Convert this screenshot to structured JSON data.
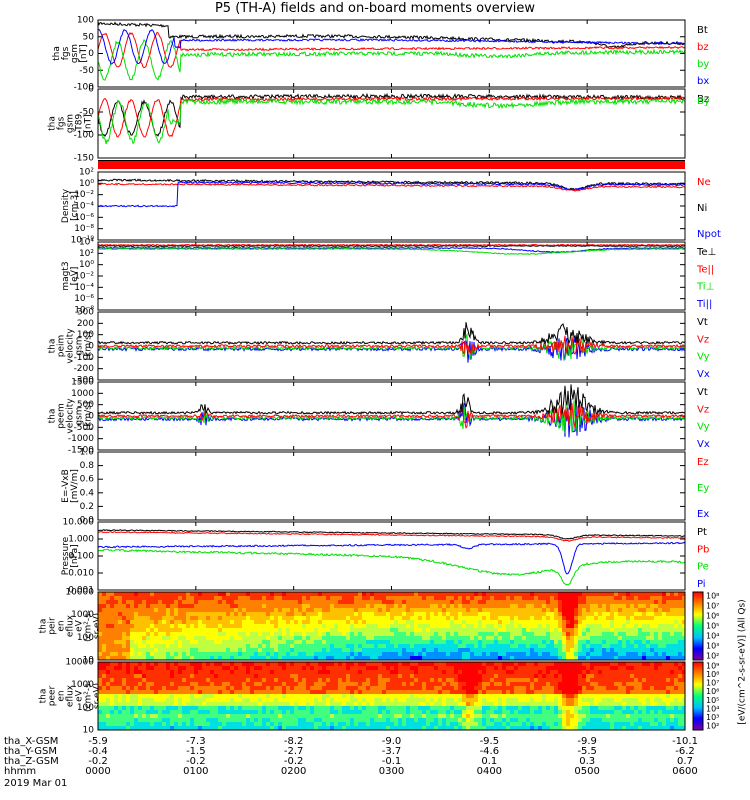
{
  "title": "P5 (TH-A) fields and on-board moments overview",
  "date_label": "2019 Mar 01",
  "footer_rows": [
    {
      "label": "tha_X-GSM",
      "values": [
        "-5.9",
        "-7.3",
        "-8.2",
        "-9.0",
        "-9.5",
        "-9.9",
        "-10.1"
      ]
    },
    {
      "label": "tha_Y-GSM",
      "values": [
        "-0.4",
        "-1.5",
        "-2.7",
        "-3.7",
        "-4.6",
        "-5.5",
        "-6.2"
      ]
    },
    {
      "label": "tha_Z-GSM",
      "values": [
        "-0.2",
        "-0.2",
        "-0.2",
        "-0.1",
        "0.1",
        "0.3",
        "0.7"
      ]
    },
    {
      "label": "hhmm",
      "values": [
        "0000",
        "0100",
        "0200",
        "0300",
        "0400",
        "0500",
        "0600"
      ]
    }
  ],
  "colors": {
    "black": "#000000",
    "red": "#ff0000",
    "green": "#00e000",
    "blue": "#0000ff"
  },
  "chart_data": [
    {
      "type": "line",
      "ylabel": [
        "tha",
        "fgs",
        "gsm",
        "[nT]"
      ],
      "ylim": [
        -100,
        100
      ],
      "ticks": [
        "100",
        "50",
        "0",
        "-50",
        "-100"
      ],
      "series": [
        {
          "name": "Bt"
        },
        {
          "name": "bz"
        },
        {
          "name": "by"
        },
        {
          "name": "bx"
        }
      ]
    },
    {
      "type": "line",
      "ylabel": [
        "tha",
        "fgs",
        "gsm",
        "-T89",
        "[nT]"
      ],
      "ylim": [
        -170,
        20
      ],
      "ticks": [
        "0",
        "-50",
        "-100",
        "-150"
      ],
      "series": [
        {
          "name": "Bz"
        },
        {
          "name": "By"
        }
      ]
    },
    {
      "type": "line",
      "ylabel": [
        "Density",
        "[cm-3]"
      ],
      "ylim": "log",
      "ticks": [
        "10²",
        "10⁰",
        "10⁻²",
        "10⁻⁴",
        "10⁻⁶",
        "10⁻⁸",
        "10⁻¹⁰"
      ],
      "series": [
        {
          "name": "Ne"
        },
        {
          "name": "Ni"
        },
        {
          "name": "Npot"
        }
      ]
    },
    {
      "type": "line",
      "ylabel": [
        "magt3",
        "[eV]"
      ],
      "ylim": "log",
      "ticks": [
        "10⁴",
        "10²",
        "10⁰",
        "10⁻²",
        "10⁻⁴",
        "10⁻⁶",
        "10⁻⁸"
      ],
      "series": [
        {
          "name": "Te⊥"
        },
        {
          "name": "Te||"
        },
        {
          "name": "Ti⊥"
        },
        {
          "name": "Ti||"
        }
      ]
    },
    {
      "type": "line",
      "ylabel": [
        "tha",
        "peim",
        "velocity",
        "gsm",
        "[km/s]"
      ],
      "ylim": [
        -300,
        300
      ],
      "ticks": [
        "300",
        "200",
        "100",
        "0",
        "-100",
        "-200",
        "-300"
      ],
      "series": [
        {
          "name": "Vt"
        },
        {
          "name": "Vz"
        },
        {
          "name": "Vy"
        },
        {
          "name": "Vx"
        }
      ]
    },
    {
      "type": "line",
      "ylabel": [
        "tha",
        "peem",
        "velocity",
        "gsm",
        "[km/s]"
      ],
      "ylim": [
        -1500,
        1500
      ],
      "ticks": [
        "1500",
        "1000",
        "500",
        "0",
        "-500",
        "-1000",
        "-1500"
      ],
      "series": [
        {
          "name": "Vt"
        },
        {
          "name": "Vz"
        },
        {
          "name": "Vy"
        },
        {
          "name": "Vx"
        }
      ]
    },
    {
      "type": "line",
      "ylabel": [
        "E=-VxB",
        "[mV/m]"
      ],
      "ylim": [
        0,
        1
      ],
      "ticks": [
        "1.0",
        "0.8",
        "0.6",
        "0.4",
        "0.2",
        "0.0"
      ],
      "series": [
        {
          "name": "Ez"
        },
        {
          "name": "Ey"
        },
        {
          "name": "Ex"
        }
      ]
    },
    {
      "type": "line",
      "ylabel": [
        "Pressure",
        "[nPa]"
      ],
      "ylim": "log",
      "ticks": [
        "10.000",
        "1.000",
        "0.100",
        "0.010",
        "0.001"
      ],
      "series": [
        {
          "name": "Pt"
        },
        {
          "name": "Pb"
        },
        {
          "name": "Pe"
        },
        {
          "name": "Pi"
        }
      ]
    },
    {
      "type": "heatmap",
      "ylabel": [
        "tha",
        "peir",
        "en",
        "eflux",
        "eV",
        "(cm²-s-",
        "sr-eV)"
      ],
      "ticks": [
        "10000",
        "1000",
        "100",
        "10"
      ],
      "colorbar": {
        "label": "[eV/(cm^2-s-sr-eV)] (All Qs)",
        "ticks": [
          "10⁸",
          "10⁷",
          "10⁶",
          "10⁵",
          "10⁴",
          "10³",
          "10²"
        ]
      }
    },
    {
      "type": "heatmap",
      "ylabel": [
        "tha",
        "peer",
        "en",
        "eflux",
        "eV",
        "(cm²-s-",
        "sr-eV)"
      ],
      "ticks": [
        "10000",
        "1000",
        "100",
        "10"
      ],
      "colorbar": {
        "label": "",
        "ticks": [
          "10⁹",
          "10⁸",
          "10⁷",
          "10⁶",
          "10⁵",
          "10⁴",
          "10³",
          "10²"
        ]
      }
    }
  ]
}
